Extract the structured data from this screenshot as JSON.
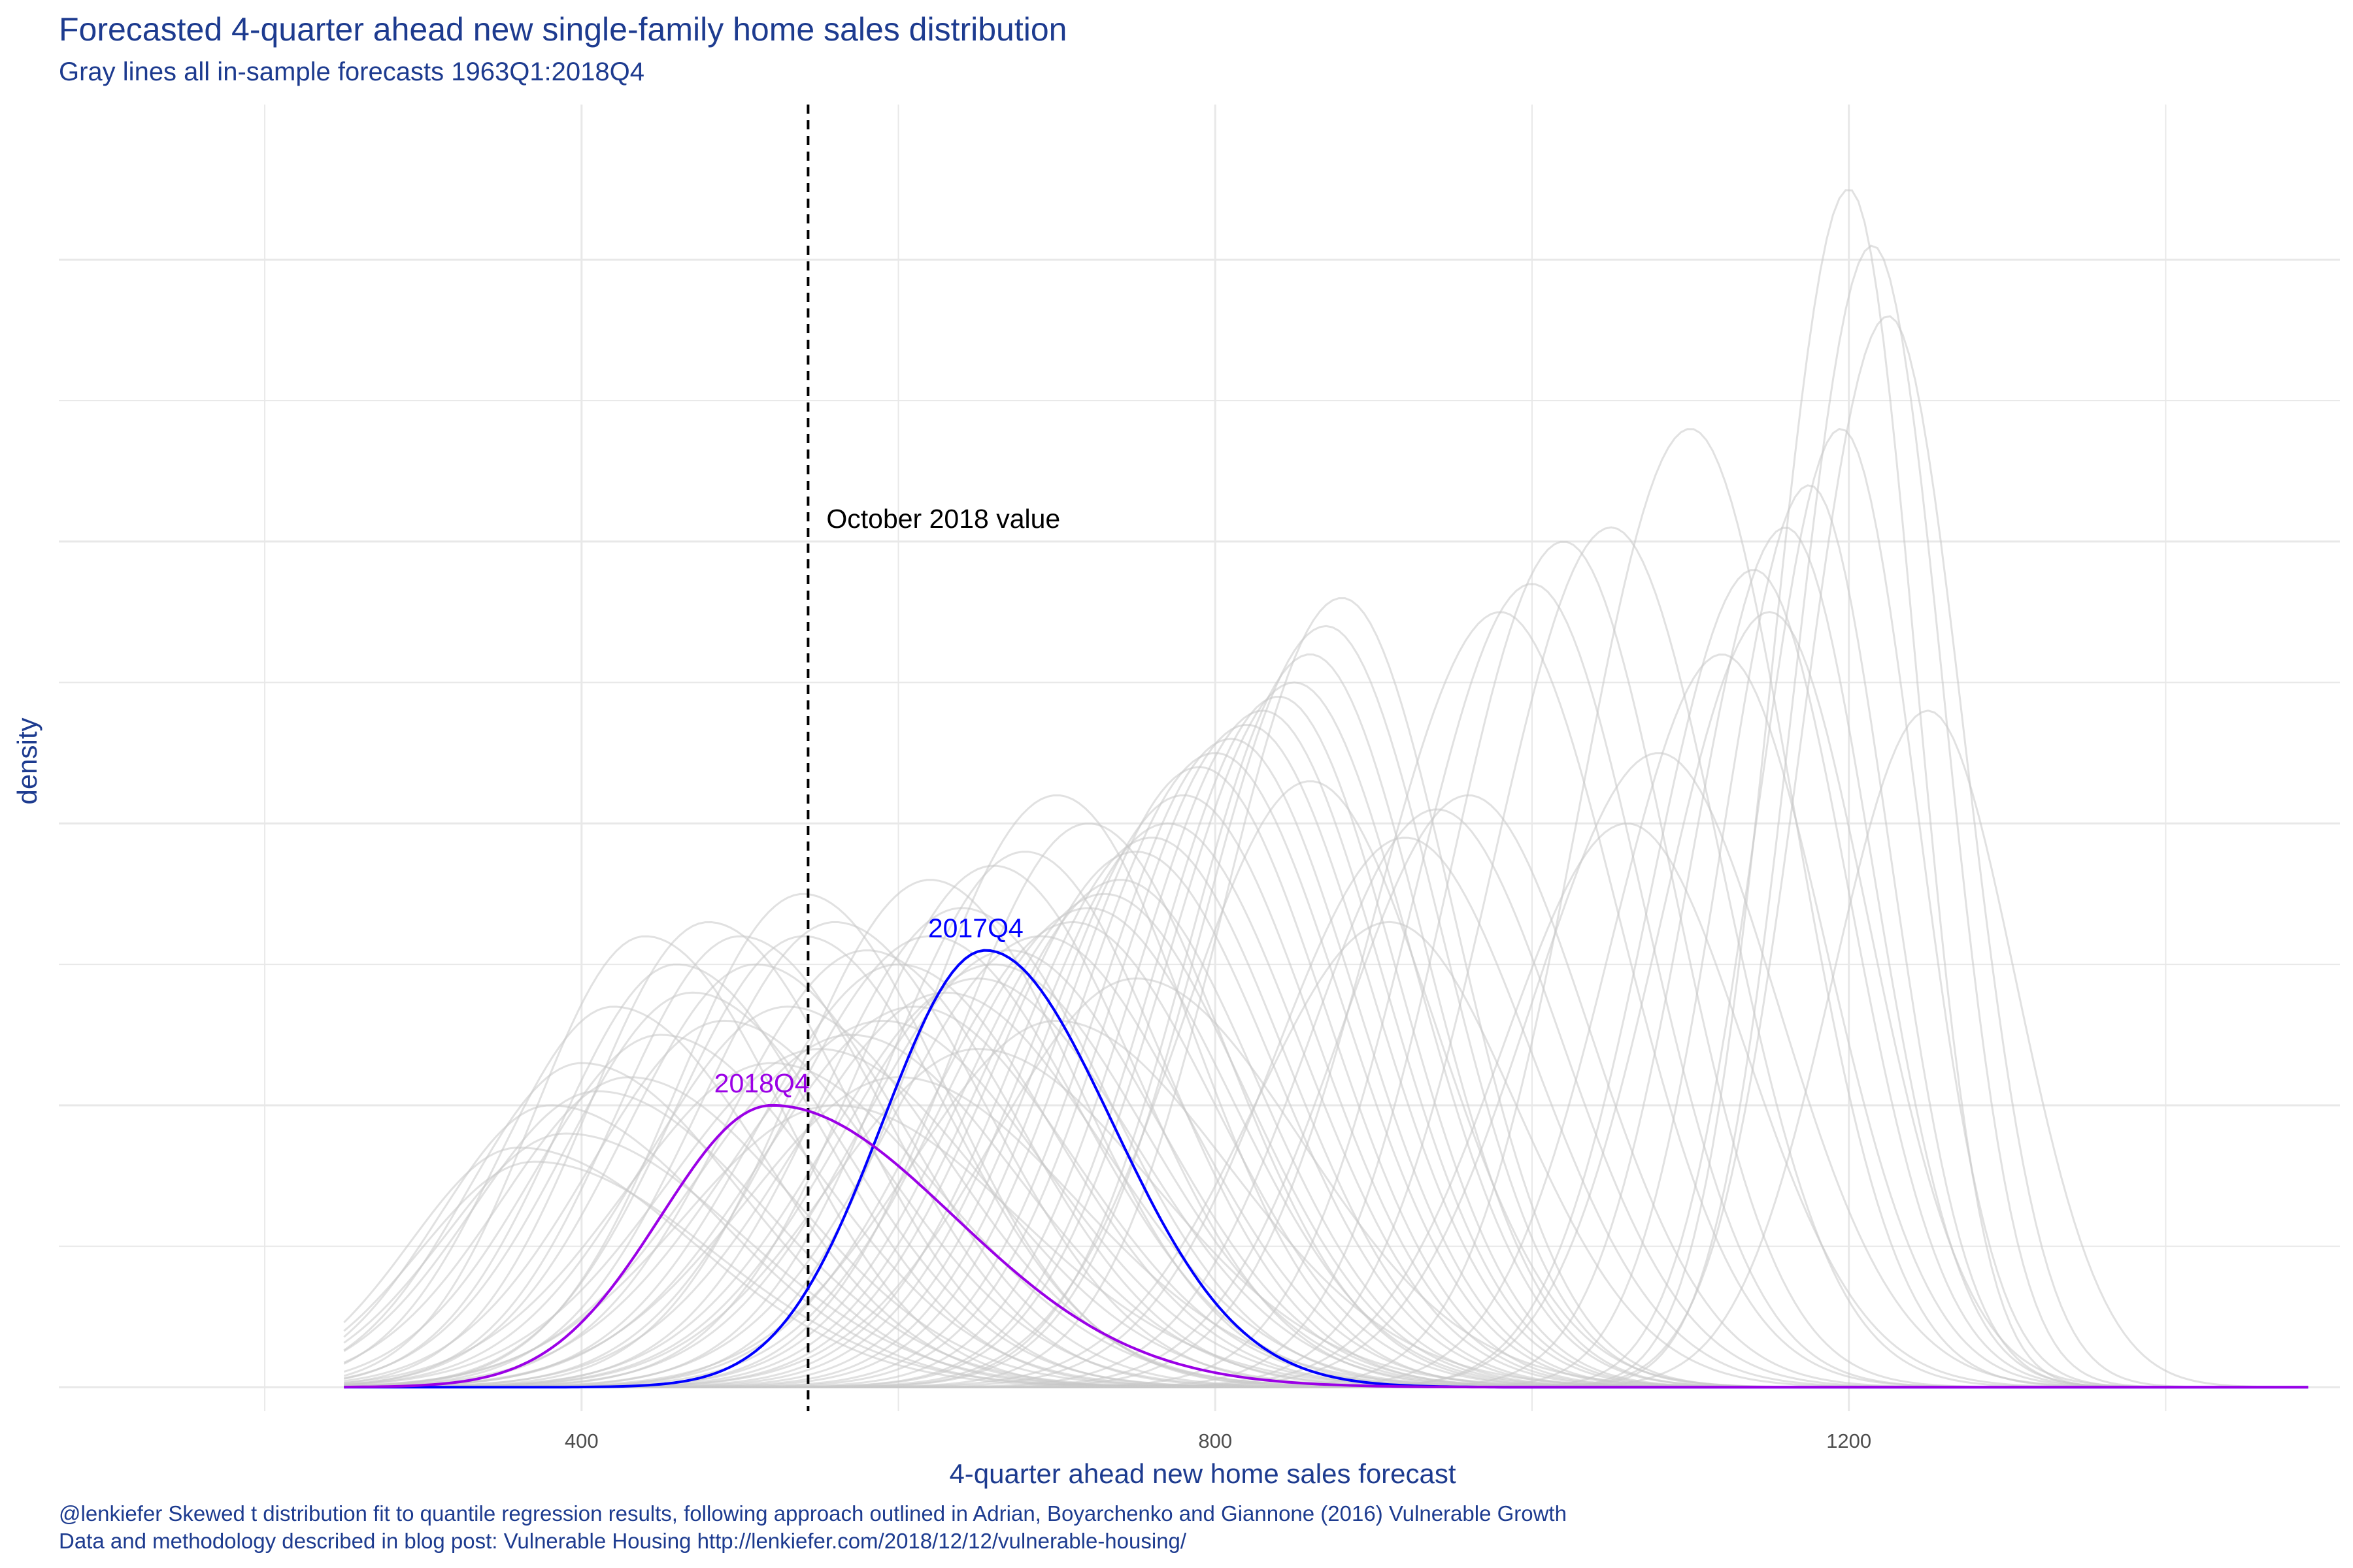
{
  "title": "Forecasted 4-quarter ahead new single-family home sales distribution",
  "subtitle": "Gray lines all in-sample forecasts 1963Q1:2018Q4",
  "caption_line1": "@lenkiefer Skewed t distribution fit to quantile regression results, following approach outlined in Adrian, Boyarchenko and Giannone (2016) Vulnerable Growth",
  "caption_line2": "Data and methodology described in blog post: Vulnerable Housing http://lenkiefer.com/2018/12/12/vulnerable-housing/",
  "colors": {
    "text": "#1d3b8f",
    "grid": "#e8e8e8",
    "gray_curves": "#c8c8c8",
    "q2017": "#0000ff",
    "q2018": "#9b00e6",
    "vline": "#000000"
  },
  "chart_data": {
    "type": "line",
    "title": "Forecasted 4-quarter ahead new single-family home sales distribution",
    "subtitle": "Gray lines all in-sample forecasts 1963Q1:2018Q4",
    "xlabel": "4-quarter ahead new home sales forecast",
    "ylabel": "density",
    "xlim": [
      70,
      1510
    ],
    "ylim": [
      -0.00017,
      0.0091
    ],
    "x_ticks": [
      400,
      800,
      1200
    ],
    "x_tick_labels": [
      "400",
      "800",
      "1200"
    ],
    "y_tick_labels_shown": false,
    "grid": true,
    "annotation": {
      "text": "October 2018 value",
      "x": 543
    },
    "highlight_series": [
      {
        "name": "2017Q4",
        "mode": 655,
        "scale_left": 65,
        "scale_right": 80,
        "peak_density": 0.0031,
        "label": "2017Q4"
      },
      {
        "name": "2018Q4",
        "mode": 520,
        "scale_left": 70,
        "scale_right": 115,
        "peak_density": 0.002,
        "label": "2018Q4"
      }
    ],
    "background_series_note": "Gray lines all in-sample forecasts 1963Q1:2018Q4",
    "background_series": [
      {
        "mode": 1200,
        "peak": 0.0085,
        "sl": 48,
        "sr": 42
      },
      {
        "mode": 1215,
        "peak": 0.0081,
        "sl": 50,
        "sr": 45
      },
      {
        "mode": 1225,
        "peak": 0.0076,
        "sl": 55,
        "sr": 48
      },
      {
        "mode": 1175,
        "peak": 0.0064,
        "sl": 55,
        "sr": 50
      },
      {
        "mode": 1160,
        "peak": 0.0061,
        "sl": 60,
        "sr": 55
      },
      {
        "mode": 1195,
        "peak": 0.0068,
        "sl": 52,
        "sr": 48
      },
      {
        "mode": 1100,
        "peak": 0.0068,
        "sl": 70,
        "sr": 65
      },
      {
        "mode": 1050,
        "peak": 0.0061,
        "sl": 75,
        "sr": 70
      },
      {
        "mode": 1000,
        "peak": 0.0057,
        "sl": 75,
        "sr": 70
      },
      {
        "mode": 1020,
        "peak": 0.006,
        "sl": 72,
        "sr": 68
      },
      {
        "mode": 1140,
        "peak": 0.0058,
        "sl": 65,
        "sr": 60
      },
      {
        "mode": 1150,
        "peak": 0.0055,
        "sl": 68,
        "sr": 62
      },
      {
        "mode": 1120,
        "peak": 0.0052,
        "sl": 70,
        "sr": 65
      },
      {
        "mode": 980,
        "peak": 0.0055,
        "sl": 80,
        "sr": 75
      },
      {
        "mode": 1080,
        "peak": 0.0045,
        "sl": 80,
        "sr": 75
      },
      {
        "mode": 880,
        "peak": 0.0056,
        "sl": 75,
        "sr": 70
      },
      {
        "mode": 870,
        "peak": 0.0054,
        "sl": 78,
        "sr": 72
      },
      {
        "mode": 860,
        "peak": 0.0052,
        "sl": 76,
        "sr": 72
      },
      {
        "mode": 850,
        "peak": 0.005,
        "sl": 80,
        "sr": 75
      },
      {
        "mode": 840,
        "peak": 0.0049,
        "sl": 78,
        "sr": 74
      },
      {
        "mode": 830,
        "peak": 0.0048,
        "sl": 80,
        "sr": 76
      },
      {
        "mode": 820,
        "peak": 0.0047,
        "sl": 82,
        "sr": 78
      },
      {
        "mode": 810,
        "peak": 0.0046,
        "sl": 82,
        "sr": 78
      },
      {
        "mode": 800,
        "peak": 0.0045,
        "sl": 84,
        "sr": 80
      },
      {
        "mode": 790,
        "peak": 0.0044,
        "sl": 84,
        "sr": 80
      },
      {
        "mode": 860,
        "peak": 0.0043,
        "sl": 80,
        "sr": 78
      },
      {
        "mode": 910,
        "peak": 0.0033,
        "sl": 85,
        "sr": 80
      },
      {
        "mode": 940,
        "peak": 0.0041,
        "sl": 80,
        "sr": 78
      },
      {
        "mode": 780,
        "peak": 0.0042,
        "sl": 85,
        "sr": 82
      },
      {
        "mode": 770,
        "peak": 0.004,
        "sl": 86,
        "sr": 84
      },
      {
        "mode": 760,
        "peak": 0.0039,
        "sl": 86,
        "sr": 84
      },
      {
        "mode": 750,
        "peak": 0.0038,
        "sl": 88,
        "sr": 86
      },
      {
        "mode": 740,
        "peak": 0.0036,
        "sl": 88,
        "sr": 86
      },
      {
        "mode": 730,
        "peak": 0.0035,
        "sl": 88,
        "sr": 88
      },
      {
        "mode": 720,
        "peak": 0.0034,
        "sl": 90,
        "sr": 90
      },
      {
        "mode": 710,
        "peak": 0.0033,
        "sl": 90,
        "sr": 90
      },
      {
        "mode": 700,
        "peak": 0.0042,
        "sl": 85,
        "sr": 85
      },
      {
        "mode": 690,
        "peak": 0.0032,
        "sl": 92,
        "sr": 92
      },
      {
        "mode": 680,
        "peak": 0.0038,
        "sl": 86,
        "sr": 88
      },
      {
        "mode": 670,
        "peak": 0.0031,
        "sl": 92,
        "sr": 94
      },
      {
        "mode": 660,
        "peak": 0.003,
        "sl": 94,
        "sr": 96
      },
      {
        "mode": 650,
        "peak": 0.0029,
        "sl": 94,
        "sr": 98
      },
      {
        "mode": 640,
        "peak": 0.0034,
        "sl": 88,
        "sr": 92
      },
      {
        "mode": 630,
        "peak": 0.0028,
        "sl": 95,
        "sr": 100
      },
      {
        "mode": 620,
        "peak": 0.0032,
        "sl": 90,
        "sr": 96
      },
      {
        "mode": 610,
        "peak": 0.0027,
        "sl": 95,
        "sr": 100
      },
      {
        "mode": 600,
        "peak": 0.003,
        "sl": 90,
        "sr": 98
      },
      {
        "mode": 590,
        "peak": 0.0026,
        "sl": 96,
        "sr": 102
      },
      {
        "mode": 580,
        "peak": 0.0031,
        "sl": 88,
        "sr": 96
      },
      {
        "mode": 570,
        "peak": 0.0025,
        "sl": 95,
        "sr": 104
      },
      {
        "mode": 560,
        "peak": 0.0033,
        "sl": 85,
        "sr": 95
      },
      {
        "mode": 550,
        "peak": 0.0024,
        "sl": 95,
        "sr": 105
      },
      {
        "mode": 540,
        "peak": 0.0032,
        "sl": 82,
        "sr": 92
      },
      {
        "mode": 530,
        "peak": 0.0027,
        "sl": 88,
        "sr": 100
      },
      {
        "mode": 520,
        "peak": 0.0023,
        "sl": 92,
        "sr": 106
      },
      {
        "mode": 510,
        "peak": 0.003,
        "sl": 82,
        "sr": 95
      },
      {
        "mode": 500,
        "peak": 0.0032,
        "sl": 78,
        "sr": 92
      },
      {
        "mode": 490,
        "peak": 0.0026,
        "sl": 84,
        "sr": 100
      },
      {
        "mode": 480,
        "peak": 0.0033,
        "sl": 75,
        "sr": 90
      },
      {
        "mode": 470,
        "peak": 0.0028,
        "sl": 80,
        "sr": 96
      },
      {
        "mode": 460,
        "peak": 0.003,
        "sl": 75,
        "sr": 92
      },
      {
        "mode": 450,
        "peak": 0.0025,
        "sl": 80,
        "sr": 100
      },
      {
        "mode": 440,
        "peak": 0.0032,
        "sl": 70,
        "sr": 88
      },
      {
        "mode": 430,
        "peak": 0.0022,
        "sl": 80,
        "sr": 104
      },
      {
        "mode": 420,
        "peak": 0.0027,
        "sl": 72,
        "sr": 95
      },
      {
        "mode": 410,
        "peak": 0.0021,
        "sl": 78,
        "sr": 105
      },
      {
        "mode": 400,
        "peak": 0.0023,
        "sl": 72,
        "sr": 100
      },
      {
        "mode": 390,
        "peak": 0.0018,
        "sl": 75,
        "sr": 110
      },
      {
        "mode": 380,
        "peak": 0.002,
        "sl": 70,
        "sr": 105
      },
      {
        "mode": 370,
        "peak": 0.0016,
        "sl": 72,
        "sr": 112
      },
      {
        "mode": 360,
        "peak": 0.0017,
        "sl": 68,
        "sr": 110
      },
      {
        "mode": 560,
        "peak": 0.002,
        "sl": 95,
        "sr": 115
      },
      {
        "mode": 600,
        "peak": 0.0022,
        "sl": 95,
        "sr": 112
      },
      {
        "mode": 650,
        "peak": 0.0024,
        "sl": 92,
        "sr": 110
      },
      {
        "mode": 700,
        "peak": 0.0026,
        "sl": 92,
        "sr": 108
      },
      {
        "mode": 750,
        "peak": 0.0029,
        "sl": 90,
        "sr": 104
      },
      {
        "mode": 620,
        "peak": 0.0036,
        "sl": 85,
        "sr": 92
      },
      {
        "mode": 720,
        "peak": 0.004,
        "sl": 84,
        "sr": 86
      },
      {
        "mode": 660,
        "peak": 0.0037,
        "sl": 86,
        "sr": 90
      },
      {
        "mode": 540,
        "peak": 0.0035,
        "sl": 80,
        "sr": 90
      },
      {
        "mode": 920,
        "peak": 0.0039,
        "sl": 82,
        "sr": 80
      },
      {
        "mode": 960,
        "peak": 0.0042,
        "sl": 80,
        "sr": 76
      },
      {
        "mode": 1060,
        "peak": 0.004,
        "sl": 78,
        "sr": 74
      },
      {
        "mode": 1250,
        "peak": 0.0048,
        "sl": 60,
        "sr": 55
      }
    ]
  }
}
